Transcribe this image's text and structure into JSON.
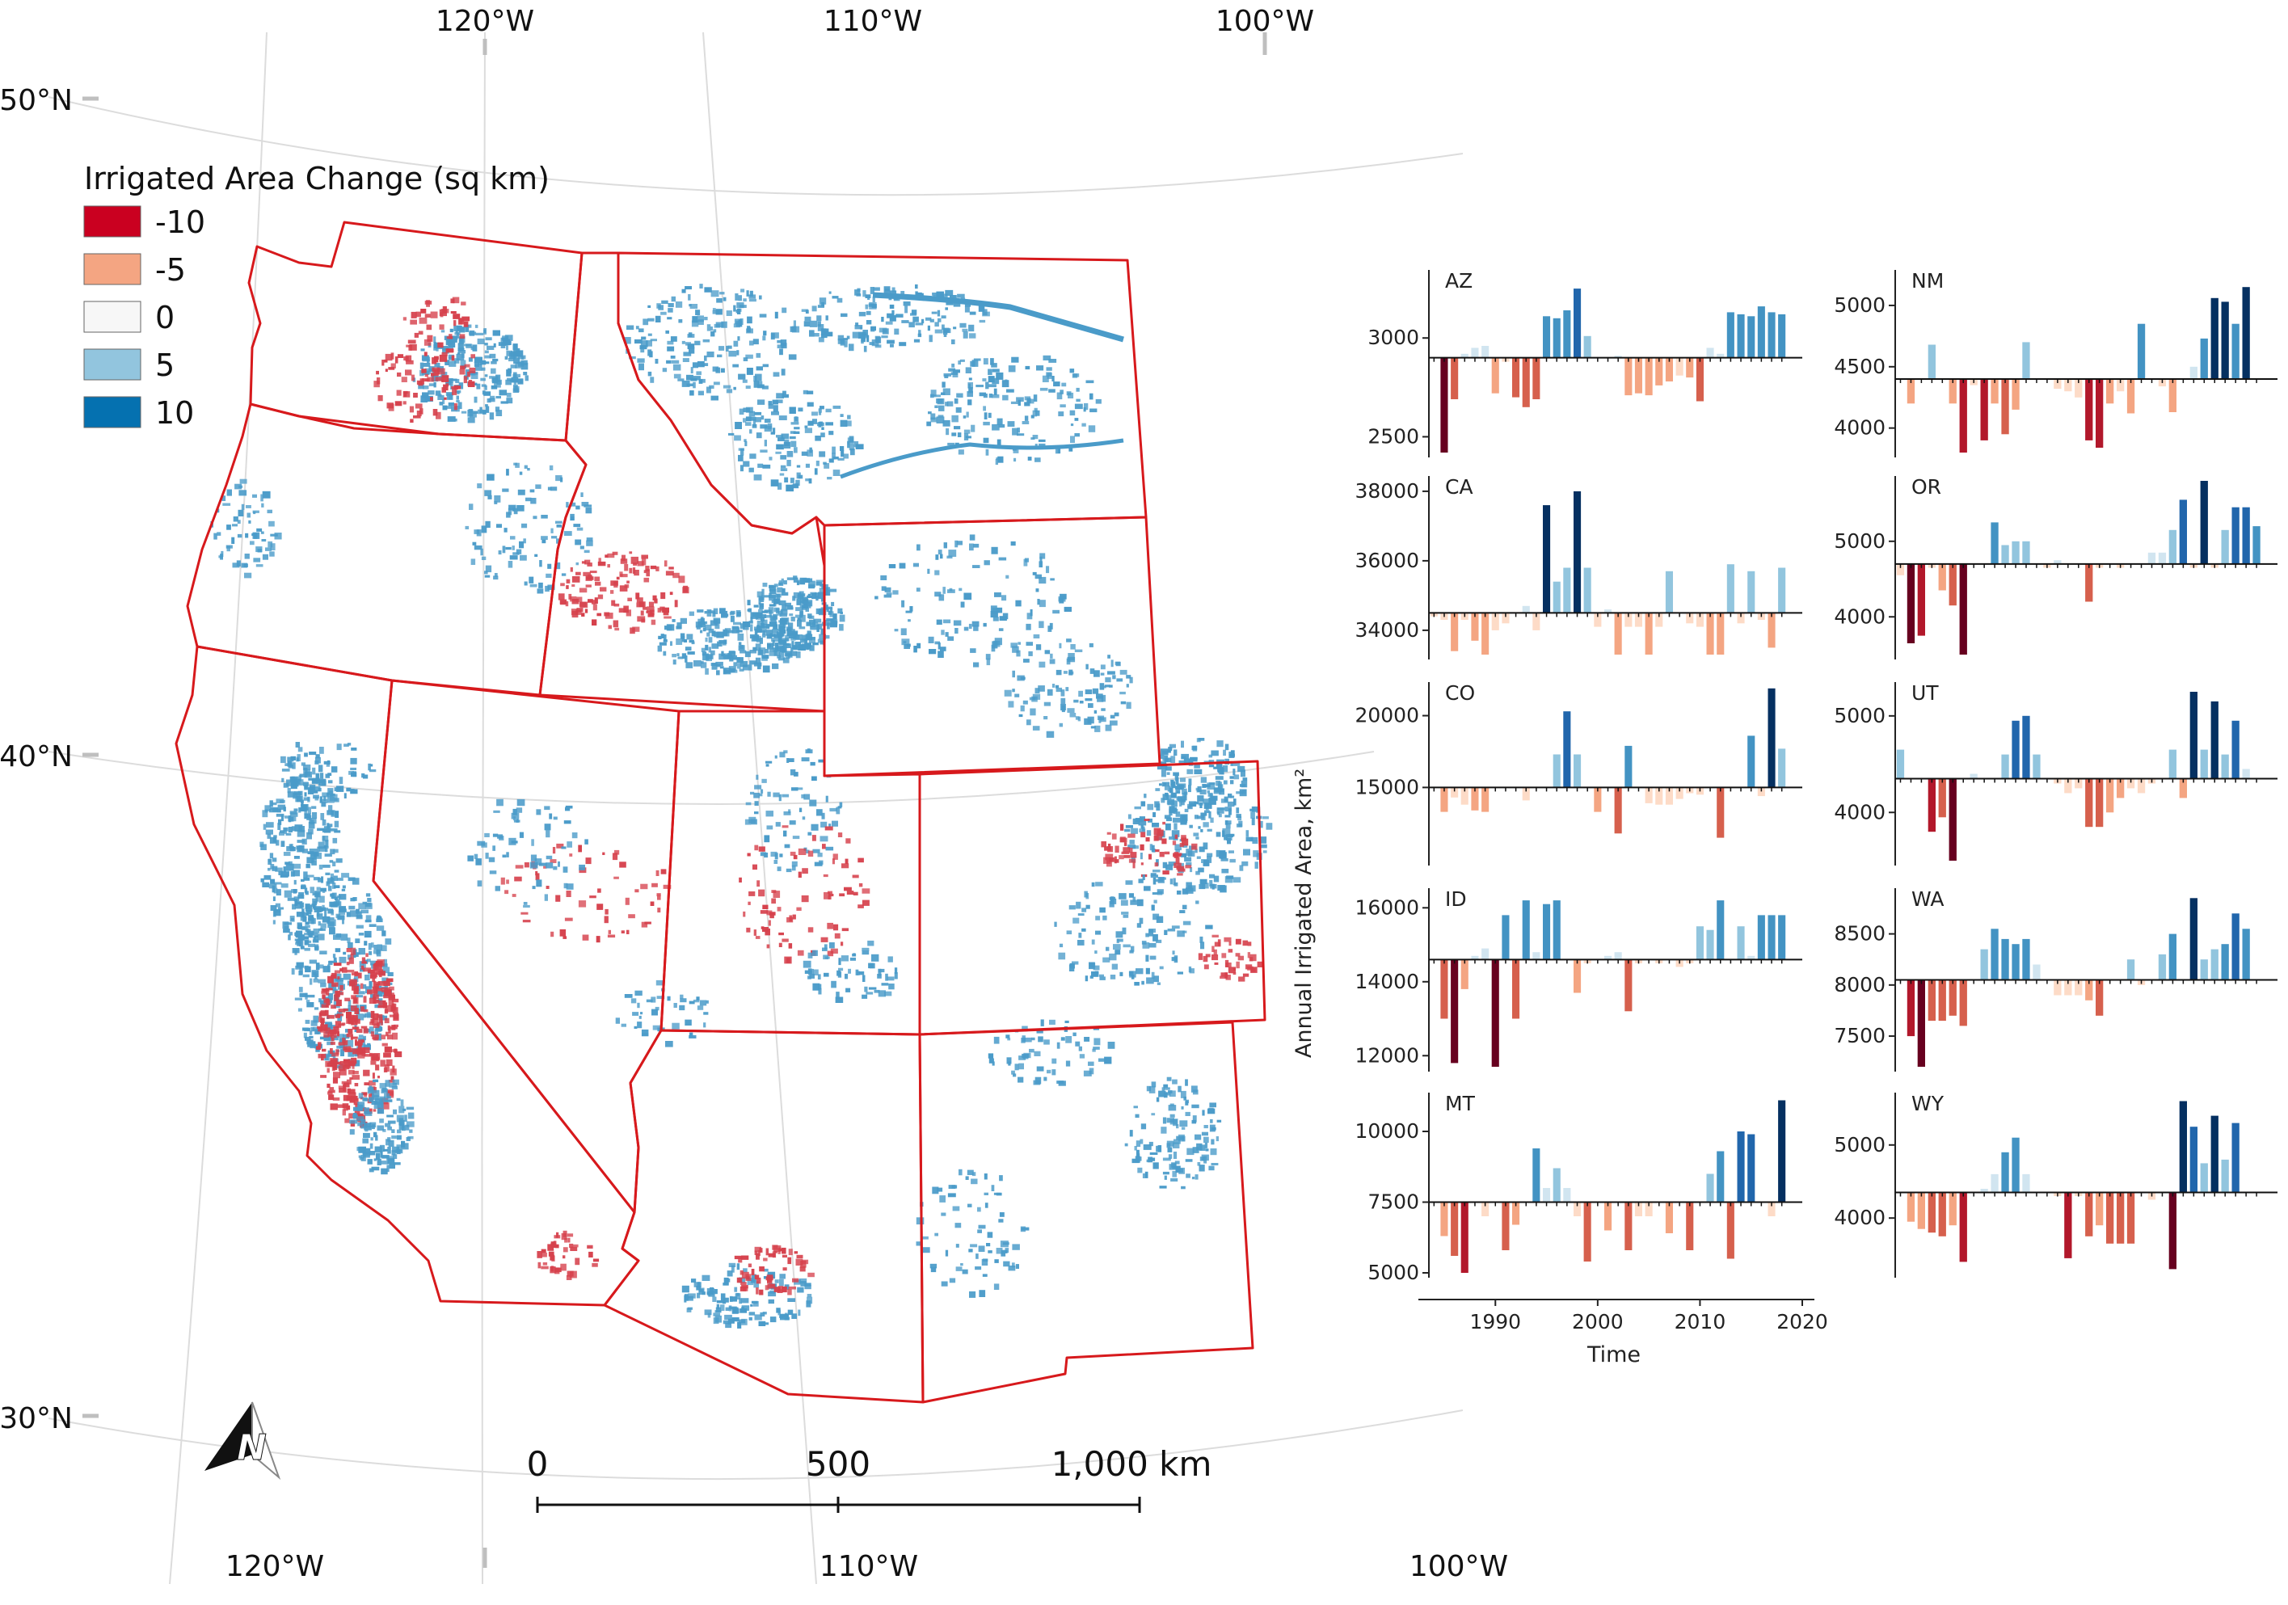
{
  "map": {
    "graticule_labels": {
      "top": [
        "120°W",
        "110°W",
        "100°W"
      ],
      "bottom": [
        "120°W",
        "110°W",
        "100°W"
      ],
      "left": [
        "50°N",
        "40°N",
        "30°N"
      ]
    },
    "legend": {
      "title": "Irrigated Area Change (sq km)",
      "items": [
        {
          "label": "-10",
          "color": "#ca0020"
        },
        {
          "label": "-5",
          "color": "#f4a582"
        },
        {
          "label": "0",
          "color": "#f7f7f7"
        },
        {
          "label": "5",
          "color": "#92c5de"
        },
        {
          "label": "10",
          "color": "#0571b0"
        }
      ]
    },
    "scale_bar": {
      "labels": [
        "0",
        "500",
        "1,000 km"
      ]
    },
    "north_arrow": {
      "icon": "north-arrow-icon",
      "letter": "N"
    },
    "colors": {
      "border": "#d7191c",
      "decrease": "#d6414c",
      "increase": "#4a9bc9",
      "graticule": "#d9d9d9"
    }
  },
  "chart_data": [
    {
      "type": "bar",
      "state": "AZ",
      "x": [
        1984,
        1985,
        1986,
        1987,
        1988,
        1989,
        1990,
        1991,
        1992,
        1993,
        1994,
        1995,
        1996,
        1997,
        1998,
        1999,
        2000,
        2001,
        2002,
        2003,
        2004,
        2005,
        2006,
        2007,
        2008,
        2009,
        2010,
        2011,
        2012,
        2013,
        2014,
        2015,
        2016,
        2017,
        2018
      ],
      "baseline": 2900,
      "ylim": [
        2420,
        3320
      ],
      "yticks": [
        2500,
        3000
      ],
      "values": [
        2900,
        2420,
        2690,
        2920,
        2950,
        2960,
        2720,
        2880,
        2700,
        2650,
        2690,
        3110,
        3100,
        3140,
        3250,
        3010,
        2900,
        2900,
        2910,
        2710,
        2720,
        2710,
        2760,
        2780,
        2810,
        2800,
        2680,
        2950,
        2920,
        3130,
        3120,
        3110,
        3160,
        3130,
        3120
      ]
    },
    {
      "type": "bar",
      "state": "NM",
      "x": [
        1984,
        1985,
        1986,
        1987,
        1988,
        1989,
        1990,
        1991,
        1992,
        1993,
        1994,
        1995,
        1996,
        1997,
        1998,
        1999,
        2000,
        2001,
        2002,
        2003,
        2004,
        2005,
        2006,
        2007,
        2008,
        2009,
        2010,
        2011,
        2012,
        2013,
        2014,
        2015,
        2016,
        2017,
        2018
      ],
      "baseline": 4400,
      "ylim": [
        3800,
        5250
      ],
      "yticks": [
        4000,
        4500,
        5000
      ],
      "values": [
        4400,
        4200,
        4400,
        4680,
        4400,
        4200,
        3800,
        4350,
        3900,
        4200,
        3950,
        4150,
        4700,
        4400,
        4400,
        4320,
        4300,
        4250,
        3900,
        3840,
        4200,
        4300,
        4120,
        4850,
        4400,
        4340,
        4130,
        4400,
        4500,
        4730,
        5060,
        5030,
        4850,
        5150,
        4400
      ]
    },
    {
      "type": "bar",
      "state": "CA",
      "x": [
        1984,
        1985,
        1986,
        1987,
        1988,
        1989,
        1990,
        1991,
        1992,
        1993,
        1994,
        1995,
        1996,
        1997,
        1998,
        1999,
        2000,
        2001,
        2002,
        2003,
        2004,
        2005,
        2006,
        2007,
        2008,
        2009,
        2010,
        2011,
        2012,
        2013,
        2014,
        2015,
        2016,
        2017,
        2018
      ],
      "baseline": 34500,
      "ylim": [
        33300,
        38300
      ],
      "yticks": [
        34000,
        36000,
        38000
      ],
      "values": [
        34400,
        34300,
        33400,
        34300,
        33700,
        33300,
        34000,
        34200,
        34500,
        34700,
        34000,
        37600,
        35400,
        35800,
        38000,
        35800,
        34100,
        34600,
        33300,
        34100,
        34100,
        33300,
        34100,
        35700,
        34500,
        34200,
        34100,
        33300,
        33300,
        35900,
        34200,
        35700,
        34300,
        33500,
        35800
      ]
    },
    {
      "type": "bar",
      "state": "OR",
      "x": [
        1984,
        1985,
        1986,
        1987,
        1988,
        1989,
        1990,
        1991,
        1992,
        1993,
        1994,
        1995,
        1996,
        1997,
        1998,
        1999,
        2000,
        2001,
        2002,
        2003,
        2004,
        2005,
        2006,
        2007,
        2008,
        2009,
        2010,
        2011,
        2012,
        2013,
        2014,
        2015,
        2016,
        2017,
        2018
      ],
      "baseline": 4700,
      "ylim": [
        3500,
        5800
      ],
      "yticks": [
        4000,
        5000
      ],
      "values": [
        4550,
        3650,
        3750,
        4650,
        4350,
        4150,
        3500,
        4700,
        4700,
        5250,
        4950,
        5000,
        5000,
        4700,
        4650,
        4750,
        4700,
        4700,
        4200,
        4650,
        4700,
        4650,
        4700,
        4700,
        4850,
        4850,
        5150,
        5550,
        4650,
        5800,
        4650,
        5150,
        5450,
        5450,
        5200
      ]
    },
    {
      "type": "bar",
      "state": "CO",
      "x": [
        1984,
        1985,
        1986,
        1987,
        1988,
        1989,
        1990,
        1991,
        1992,
        1993,
        1994,
        1995,
        1996,
        1997,
        1998,
        1999,
        2000,
        2001,
        2002,
        2003,
        2004,
        2005,
        2006,
        2007,
        2008,
        2009,
        2010,
        2011,
        2012,
        2013,
        2014,
        2015,
        2016,
        2017,
        2018
      ],
      "baseline": 15000,
      "ylim": [
        9900,
        22000
      ],
      "yticks": [
        15000,
        20000
      ],
      "values": [
        15000,
        13300,
        14300,
        13800,
        13400,
        13300,
        15000,
        15000,
        15000,
        14100,
        15000,
        15000,
        17300,
        20300,
        17300,
        15000,
        13300,
        15000,
        11800,
        17900,
        15000,
        13900,
        13800,
        13800,
        14200,
        14600,
        14500,
        15000,
        11500,
        15000,
        15000,
        18600,
        14400,
        21900,
        17700
      ]
    },
    {
      "type": "bar",
      "state": "UT",
      "x": [
        1984,
        1985,
        1986,
        1987,
        1988,
        1989,
        1990,
        1991,
        1992,
        1993,
        1994,
        1995,
        1996,
        1997,
        1998,
        1999,
        2000,
        2001,
        2002,
        2003,
        2004,
        2005,
        2006,
        2007,
        2008,
        2009,
        2010,
        2011,
        2012,
        2013,
        2014,
        2015,
        2016,
        2017,
        2018
      ],
      "baseline": 4350,
      "ylim": [
        3500,
        5300
      ],
      "yticks": [
        4000,
        5000
      ],
      "values": [
        4650,
        4350,
        4350,
        3800,
        3950,
        3500,
        4350,
        4400,
        4350,
        4350,
        4600,
        4950,
        5000,
        4600,
        4350,
        4300,
        4200,
        4250,
        3850,
        3850,
        4000,
        4150,
        4250,
        4200,
        4300,
        4350,
        4650,
        4150,
        5250,
        4650,
        5150,
        4600,
        4950,
        4450,
        4350
      ]
    },
    {
      "type": "bar",
      "state": "ID",
      "x": [
        1984,
        1985,
        1986,
        1987,
        1988,
        1989,
        1990,
        1991,
        1992,
        1993,
        1994,
        1995,
        1996,
        1997,
        1998,
        1999,
        2000,
        2001,
        2002,
        2003,
        2004,
        2005,
        2006,
        2007,
        2008,
        2009,
        2010,
        2011,
        2012,
        2013,
        2014,
        2015,
        2016,
        2017,
        2018
      ],
      "baseline": 14600,
      "ylim": [
        11700,
        16400
      ],
      "yticks": [
        12000,
        14000,
        16000
      ],
      "values": [
        14600,
        13000,
        11800,
        13800,
        14700,
        14900,
        11700,
        15800,
        13000,
        16200,
        14800,
        16100,
        16200,
        14600,
        13700,
        14500,
        14600,
        14700,
        14800,
        13200,
        14500,
        14600,
        14500,
        14600,
        14400,
        14500,
        15500,
        15400,
        16200,
        14600,
        15500,
        14700,
        15800,
        15800,
        15800
      ]
    },
    {
      "type": "bar",
      "state": "WA",
      "x": [
        1984,
        1985,
        1986,
        1987,
        1988,
        1989,
        1990,
        1991,
        1992,
        1993,
        1994,
        1995,
        1996,
        1997,
        1998,
        1999,
        2000,
        2001,
        2002,
        2003,
        2004,
        2005,
        2006,
        2007,
        2008,
        2009,
        2010,
        2011,
        2012,
        2013,
        2014,
        2015,
        2016,
        2017,
        2018
      ],
      "baseline": 8050,
      "ylim": [
        7200,
        8900
      ],
      "yticks": [
        7500,
        8000,
        8500
      ],
      "values": [
        8050,
        7500,
        7200,
        7650,
        7650,
        7700,
        7600,
        8050,
        8350,
        8550,
        8450,
        8400,
        8450,
        8200,
        8050,
        7900,
        7900,
        7900,
        7850,
        7700,
        8050,
        8050,
        8250,
        8000,
        8050,
        8300,
        8500,
        8050,
        8850,
        8250,
        8350,
        8400,
        8700,
        8550,
        8050
      ]
    },
    {
      "type": "bar",
      "state": "MT",
      "x": [
        1984,
        1985,
        1986,
        1987,
        1988,
        1989,
        1990,
        1991,
        1992,
        1993,
        1994,
        1995,
        1996,
        1997,
        1998,
        1999,
        2000,
        2001,
        2002,
        2003,
        2004,
        2005,
        2006,
        2007,
        2008,
        2009,
        2010,
        2011,
        2012,
        2013,
        2014,
        2015,
        2016,
        2017,
        2018
      ],
      "baseline": 7500,
      "ylim": [
        5000,
        11200
      ],
      "yticks": [
        5000,
        7500,
        10000
      ],
      "values": [
        7500,
        6300,
        5600,
        5000,
        7500,
        7000,
        7500,
        5800,
        6700,
        7500,
        9400,
        8000,
        8700,
        8000,
        7000,
        5400,
        7500,
        6500,
        7500,
        5800,
        7000,
        7000,
        7500,
        6400,
        7500,
        5800,
        7500,
        8500,
        9300,
        5500,
        10000,
        9900,
        7500,
        7000,
        11100
      ]
    },
    {
      "type": "bar",
      "state": "WY",
      "x": [
        1984,
        1985,
        1986,
        1987,
        1988,
        1989,
        1990,
        1991,
        1992,
        1993,
        1994,
        1995,
        1996,
        1997,
        1998,
        1999,
        2000,
        2001,
        2002,
        2003,
        2004,
        2005,
        2006,
        2007,
        2008,
        2009,
        2010,
        2011,
        2012,
        2013,
        2014,
        2015,
        2016,
        2017,
        2018
      ],
      "baseline": 4350,
      "ylim": [
        3250,
        5650
      ],
      "yticks": [
        4000,
        5000
      ],
      "values": [
        4350,
        3950,
        3850,
        3800,
        3750,
        3900,
        3400,
        4350,
        4400,
        4600,
        4900,
        5100,
        4600,
        4350,
        4350,
        4300,
        3450,
        4300,
        3750,
        3900,
        3650,
        3650,
        3650,
        4350,
        4250,
        4350,
        3300,
        5600,
        5250,
        4750,
        5400,
        4800,
        5300,
        4350,
        4350
      ]
    }
  ],
  "charts": {
    "ylabel": "Annual Irrigated Area, km²",
    "xlabel": "Time",
    "xticks": [
      "1990",
      "2000",
      "2010",
      "2020"
    ]
  }
}
